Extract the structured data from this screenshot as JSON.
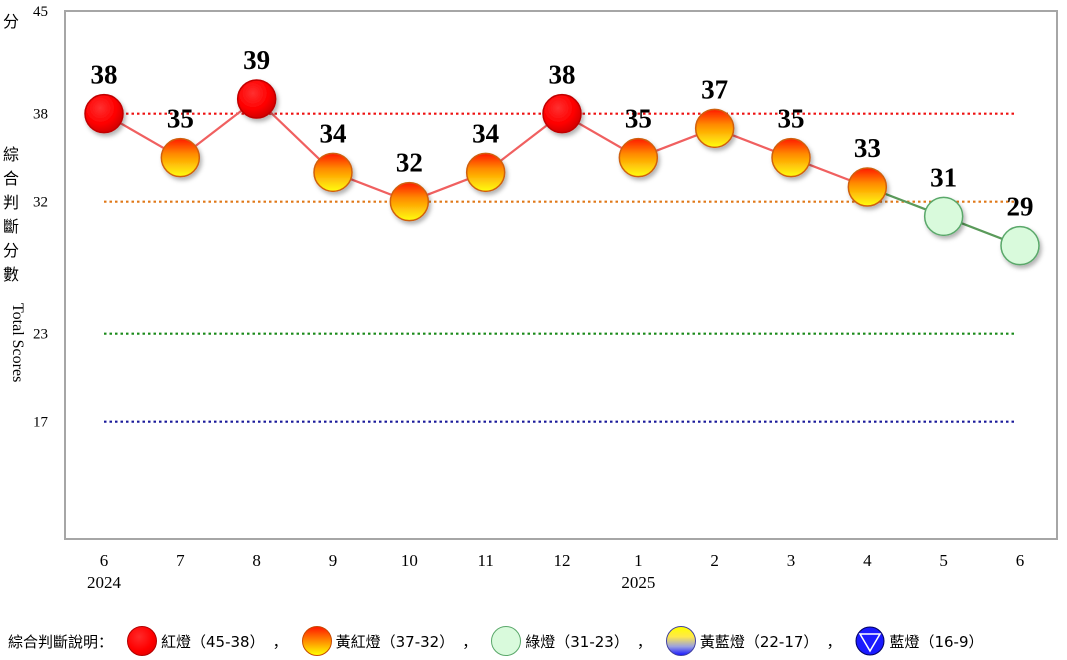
{
  "chart_data": {
    "type": "line",
    "yaxis_label_zh_top": "分",
    "yaxis_label_zh": [
      "綜",
      "合",
      "判",
      "斷",
      "分",
      "數"
    ],
    "yaxis_label_en": "Total Scores",
    "ylim": [
      9,
      45
    ],
    "yticks": [
      17,
      23,
      32,
      38,
      45
    ],
    "thresholds": [
      {
        "value": 38,
        "color": "#ee1111"
      },
      {
        "value": 32,
        "color": "#e07818"
      },
      {
        "value": 23,
        "color": "#1a8a1a"
      },
      {
        "value": 17,
        "color": "#1a1a9a"
      }
    ],
    "x_month": [
      "6",
      "7",
      "8",
      "9",
      "10",
      "11",
      "12",
      "1",
      "2",
      "3",
      "4",
      "5",
      "6"
    ],
    "x_year": [
      "2024",
      "",
      "",
      "",
      "",
      "",
      "",
      "2025",
      "",
      "",
      "",
      "",
      ""
    ],
    "values": [
      38,
      35,
      39,
      34,
      32,
      34,
      38,
      35,
      37,
      35,
      33,
      31,
      29
    ],
    "signals": [
      "red",
      "orange",
      "red",
      "orange",
      "orange",
      "orange",
      "red",
      "orange",
      "orange",
      "orange",
      "orange",
      "green",
      "green"
    ],
    "grid": false
  },
  "legend": {
    "lead": "綜合判斷說明：",
    "items": [
      {
        "signal": "red",
        "label": "紅燈（45-38）"
      },
      {
        "signal": "orange",
        "label": "黃紅燈（37-32）"
      },
      {
        "signal": "green",
        "label": "綠燈（31-23）"
      },
      {
        "signal": "yellowblue",
        "label": "黃藍燈（22-17）"
      },
      {
        "signal": "blue",
        "label": "藍燈（16-9）"
      }
    ],
    "separator": "，"
  },
  "colors": {
    "red": "#ff0000",
    "orange": "#ff9900",
    "green": "#d9fadc",
    "blue": "#1a1aff",
    "line_red": "#f06060",
    "line_green": "#5a9a5a",
    "frame": "#a6a6a6"
  }
}
